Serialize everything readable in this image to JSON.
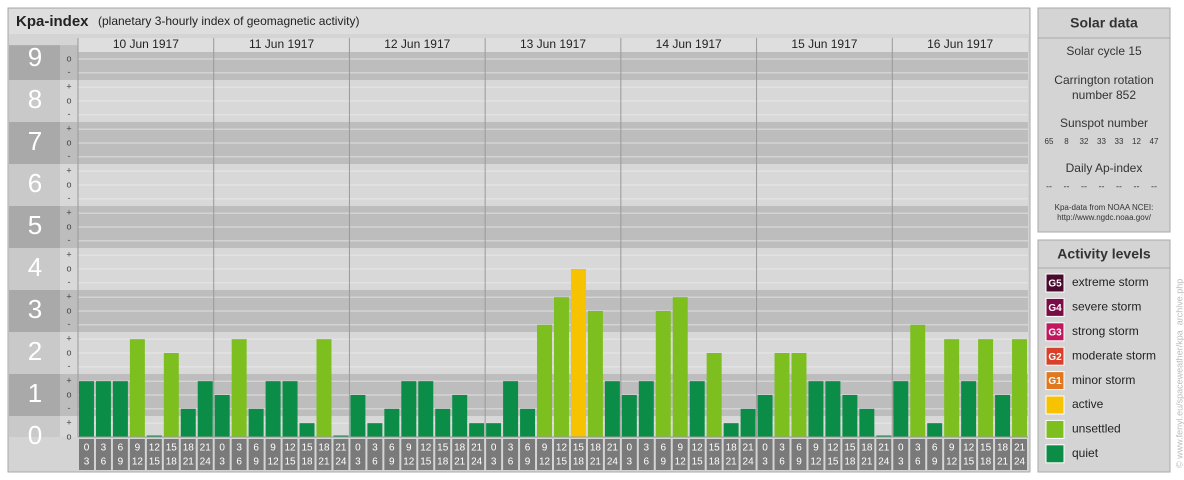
{
  "chart_data": {
    "type": "bar",
    "title": "Kpa-index",
    "subtitle": "(planetary 3-hourly index of geomagnetic activity)",
    "ylim": [
      0,
      9.33
    ],
    "yticks": [
      0,
      1,
      2,
      3,
      4,
      5,
      6,
      7,
      8,
      9
    ],
    "minor_ticks": [
      {
        "value": 0,
        "label": "o"
      },
      {
        "value": 0.33,
        "label": "+"
      },
      {
        "value": 0.67,
        "label": "-"
      },
      {
        "value": 1,
        "label": "o"
      },
      {
        "value": 1.33,
        "label": "+"
      },
      {
        "value": 1.67,
        "label": "-"
      },
      {
        "value": 2,
        "label": "o"
      },
      {
        "value": 2.33,
        "label": "+"
      },
      {
        "value": 2.67,
        "label": "-"
      },
      {
        "value": 3,
        "label": "o"
      },
      {
        "value": 3.33,
        "label": "+"
      },
      {
        "value": 3.67,
        "label": "-"
      },
      {
        "value": 4,
        "label": "o"
      },
      {
        "value": 4.33,
        "label": "+"
      },
      {
        "value": 4.67,
        "label": "-"
      },
      {
        "value": 5,
        "label": "o"
      },
      {
        "value": 5.33,
        "label": "+"
      },
      {
        "value": 5.67,
        "label": "-"
      },
      {
        "value": 6,
        "label": "o"
      },
      {
        "value": 6.33,
        "label": "+"
      },
      {
        "value": 6.67,
        "label": "-"
      },
      {
        "value": 7,
        "label": "o"
      },
      {
        "value": 7.33,
        "label": "+"
      },
      {
        "value": 7.67,
        "label": "-"
      },
      {
        "value": 8,
        "label": "o"
      },
      {
        "value": 8.33,
        "label": "+"
      },
      {
        "value": 8.67,
        "label": "-"
      },
      {
        "value": 9,
        "label": "o"
      }
    ],
    "hour_starts": [
      0,
      3,
      6,
      9,
      12,
      15,
      18,
      21
    ],
    "hour_ends": [
      3,
      6,
      9,
      12,
      15,
      18,
      21,
      24
    ],
    "grid": true,
    "days": [
      {
        "date": "10 Jun 1917",
        "values": [
          1.33,
          1.33,
          1.33,
          2.33,
          0,
          2,
          0.67,
          1.33
        ],
        "colors": [
          "#0b8c47",
          "#0b8c47",
          "#0b8c47",
          "#7cbf1e",
          "#0b8c47",
          "#7cbf1e",
          "#0b8c47",
          "#0b8c47"
        ]
      },
      {
        "date": "11 Jun 1917",
        "values": [
          1,
          2.33,
          0.67,
          1.33,
          1.33,
          0.33,
          2.33,
          0
        ],
        "colors": [
          "#0b8c47",
          "#7cbf1e",
          "#0b8c47",
          "#0b8c47",
          "#0b8c47",
          "#0b8c47",
          "#7cbf1e",
          "#0b8c47"
        ]
      },
      {
        "date": "12 Jun 1917",
        "values": [
          1,
          0.33,
          0.67,
          1.33,
          1.33,
          0.67,
          1,
          0.33
        ],
        "colors": [
          "#0b8c47",
          "#0b8c47",
          "#0b8c47",
          "#0b8c47",
          "#0b8c47",
          "#0b8c47",
          "#0b8c47",
          "#0b8c47"
        ]
      },
      {
        "date": "13 Jun 1917",
        "values": [
          0.33,
          1.33,
          0.67,
          2.67,
          3.33,
          4,
          3,
          1.33
        ],
        "colors": [
          "#0b8c47",
          "#0b8c47",
          "#0b8c47",
          "#7cbf1e",
          "#7cbf1e",
          "#f7c200",
          "#7cbf1e",
          "#0b8c47"
        ]
      },
      {
        "date": "14 Jun 1917",
        "values": [
          1,
          1.33,
          3,
          3.33,
          1.33,
          2,
          0.33,
          0.67
        ],
        "colors": [
          "#0b8c47",
          "#0b8c47",
          "#7cbf1e",
          "#7cbf1e",
          "#0b8c47",
          "#7cbf1e",
          "#0b8c47",
          "#0b8c47"
        ]
      },
      {
        "date": "15 Jun 1917",
        "values": [
          1,
          2,
          2,
          1.33,
          1.33,
          1,
          0.67,
          0
        ],
        "colors": [
          "#0b8c47",
          "#7cbf1e",
          "#7cbf1e",
          "#0b8c47",
          "#0b8c47",
          "#0b8c47",
          "#0b8c47",
          "#0b8c47"
        ]
      },
      {
        "date": "16 Jun 1917",
        "values": [
          1.33,
          2.67,
          0.33,
          2.33,
          1.33,
          2.33,
          1,
          2.33
        ],
        "colors": [
          "#0b8c47",
          "#7cbf1e",
          "#0b8c47",
          "#7cbf1e",
          "#0b8c47",
          "#7cbf1e",
          "#0b8c47",
          "#7cbf1e"
        ]
      }
    ]
  },
  "solar_data": {
    "title": "Solar data",
    "solar_cycle": "Solar cycle 15",
    "carrington": [
      "Carrington rotation",
      "number 852"
    ],
    "sunspot_title": "Sunspot number",
    "sunspot_numbers": [
      65,
      8,
      32,
      33,
      33,
      12,
      47
    ],
    "ap_title": "Daily Ap-index",
    "ap_values": [
      "--",
      "--",
      "--",
      "--",
      "--",
      "--",
      "--"
    ],
    "source": [
      "Kpa-data from NOAA NCEI:",
      "http://www.ngdc.noaa.gov/"
    ]
  },
  "activity_levels": {
    "title": "Activity levels",
    "levels": [
      {
        "badge": "G5",
        "label": "extreme storm",
        "color": "#4a0a2e"
      },
      {
        "badge": "G4",
        "label": "severe storm",
        "color": "#7a0b45"
      },
      {
        "badge": "G3",
        "label": "strong storm",
        "color": "#c0175e"
      },
      {
        "badge": "G2",
        "label": "moderate storm",
        "color": "#d8402a"
      },
      {
        "badge": "G1",
        "label": "minor storm",
        "color": "#e07820"
      },
      {
        "label": "active",
        "color": "#f7c200"
      },
      {
        "label": "unsettled",
        "color": "#7cbf1e"
      },
      {
        "label": "quiet",
        "color": "#0b8c47"
      }
    ]
  },
  "credit": "© www.fenyi.eu/spaceweather/kpa_archive.php"
}
